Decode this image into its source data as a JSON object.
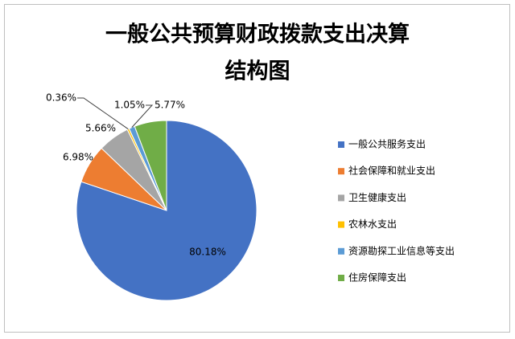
{
  "chart_data": {
    "type": "pie",
    "title": [
      "一般公共预算财政拨款支出决算",
      "结构图"
    ],
    "categories": [
      "一般公共服务支出",
      "社会保障和就业支出",
      "卫生健康支出",
      "农林水支出",
      "资源勘探工业信息等支出",
      "住房保障支出"
    ],
    "values": [
      80.18,
      6.98,
      5.66,
      0.36,
      1.05,
      5.77
    ],
    "value_labels": [
      "80.18%",
      "6.98%",
      "5.66%",
      "0.36%",
      "1.05%",
      "5.77%"
    ],
    "colors": [
      "#4472c4",
      "#ed7d31",
      "#a5a5a5",
      "#ffc000",
      "#5b9bd5",
      "#70ad47"
    ],
    "legend": "right"
  }
}
